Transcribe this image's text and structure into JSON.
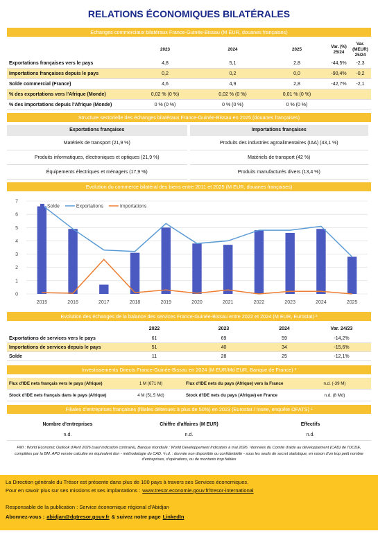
{
  "header": {
    "title": "RELATIONS ÉCONOMIQUES BILATÉRALES"
  },
  "trade": {
    "title": "Echanges commerciaux bilatéraux France-Guinée-Bissau (M EUR, douanes françaises)",
    "columns": [
      null,
      "2023",
      "2024",
      "2025",
      "Var. (%)\n25/24",
      "Var. (MEUR)\n25/24"
    ],
    "rows": [
      [
        "Exportations françaises vers le pays",
        "4,8",
        "5,1",
        "2,8",
        "-44,5%",
        "-2,3"
      ],
      [
        "Importations françaises depuis le pays",
        "0,2",
        "0,2",
        "0,0",
        "-90,4%",
        "-0,2"
      ],
      [
        "Solde commercial (France)",
        "4,6",
        "4,9",
        "2,8",
        "-42,7%",
        "-2,1"
      ],
      [
        "% des exportations vers l'Afrique (Monde)",
        "0,02 % (0 %)",
        "0,02 % (0 %)",
        "0,01 % (0 %)",
        null,
        null
      ],
      [
        "% des importations depuis l'Afrique (Monde)",
        "0 % (0 %)",
        "0 % (0 %)",
        "0 % (0 %)",
        null,
        null
      ]
    ]
  },
  "structure": {
    "title": "Structure sectorielle des échanges bilatéraux France-Guinée-Bissau en 2025 (douanes françaises)",
    "columns": [
      "Exportations françaises",
      "Importations françaises"
    ],
    "rows": [
      [
        "Matériels de transport (21,9 %)",
        "Produits des industries agroalimentaires (IAA) (43,1 %)"
      ],
      [
        "Produits informatiques, électroniques et optiques (21,9 %)",
        "Matériels de transport (42 %)"
      ],
      [
        "Équipements électriques et ménagers (17,9 %)",
        "Produits manufacturés divers (13,4 %)"
      ]
    ]
  },
  "chart_data": {
    "type": "bar",
    "title": "Evolution du commerce bilatéral des biens entre 2011 et 2025 (M EUR, douanes françaises)",
    "categories": [
      "2015",
      "2016",
      "2017",
      "2018",
      "2019",
      "2020",
      "2021",
      "2022",
      "2023",
      "2024",
      "2025"
    ],
    "series": [
      {
        "name": "Solde",
        "type": "bar",
        "color": "#4a5ac0",
        "values": [
          6.6,
          4.9,
          0.7,
          3.1,
          5.0,
          3.8,
          3.7,
          4.8,
          4.6,
          4.9,
          2.8
        ]
      },
      {
        "name": "Exportations",
        "type": "line",
        "color": "#5b9bd5",
        "values": [
          6.7,
          4.9,
          3.3,
          3.2,
          5.3,
          3.8,
          4.0,
          4.8,
          4.8,
          5.1,
          2.8
        ]
      },
      {
        "name": "Importations",
        "type": "line",
        "color": "#ed7d31",
        "values": [
          0.1,
          0.05,
          2.6,
          0.1,
          0.3,
          0.05,
          0.3,
          0.0,
          0.2,
          0.2,
          0.0
        ]
      }
    ],
    "ylim": [
      0,
      7
    ],
    "yticks": [
      0,
      1,
      2,
      3,
      4,
      5,
      6,
      7
    ],
    "grid": true,
    "legend": "top-left"
  },
  "services": {
    "title": "Evolution des échanges de la balance des services France-Guinée-Bissau entre 2022 et 2024 (M EUR, Eurostat) ²",
    "columns": [
      null,
      "2022",
      "2023",
      "2024",
      "Var. 24/23"
    ],
    "rows": [
      [
        "Exportations de services vers le pays",
        "61",
        "69",
        "59",
        "-14,2%"
      ],
      [
        "Importations de services depuis le pays",
        "51",
        "40",
        "34",
        "-15,6%"
      ],
      [
        "Solde",
        "11",
        "28",
        "25",
        "-12,1%"
      ]
    ]
  },
  "fdi": {
    "title": "Investissements Directs France-Guinée-Bissau en 2024 (M EUR/Md EUR, Banque de France) ³",
    "rows": [
      [
        "Flux d'IDE nets français vers le pays (Afrique)",
        "1 M (671 M)",
        "Flux d'IDE nets du pays (Afrique) vers la France",
        "n.d. (-39 M)"
      ],
      [
        "Stock d'IDE nets français dans le pays (Afrique)",
        "4 M (51,5 Md)",
        "Stock d'IDE nets du pays (Afrique) en France",
        "n.d. (8 Md)"
      ]
    ]
  },
  "subsidiaries": {
    "title": "Filiales d'entreprises françaises (filiales détenues à plus de 50%) en 2023 (Eurostat / Insee, enquête OFATS) ²",
    "columns": [
      "Nombre d'entreprises",
      "Chiffre d'affaires (M EUR)",
      "Effectifs"
    ],
    "rows": [
      [
        "n.d.",
        "n.d.",
        "n.d."
      ]
    ]
  },
  "footnote": "FMI : World Economic Outlook d'Avril 2026 (sauf indication contraire), Banque mondiale : World Developpement Indicators à mai 2026. ¹données du Comité d'aide au développement (CAD) de l'OCDE, compilées par la BM. APD versée calculée en équivalent don - méthodologie du CAD. ²n.d. : donnée non disponible ou confidentielle - sous les seuils de secret statistique, en raison d'un trop petit nombre d'entreprises, d'opérations, ou de montants trop faibles",
  "footer": {
    "intro": "La Direction générale du Trésor est présente dans plus de 100 pays à travers ses Services économiques.",
    "more_label": "Pour en savoir plus sur ses missions et ses implantations :",
    "more_link": "www.tresor.economie.gouv.fr/tresor-international",
    "publisher": "Responsable de la publication : Service économique régional d'Abidjan",
    "subscribe_label": "Abonnez-vous :",
    "email": "abidjan@dgtresor.gouv.fr",
    "follow": "& suivez notre page",
    "linkedin": "LinkedIn"
  }
}
